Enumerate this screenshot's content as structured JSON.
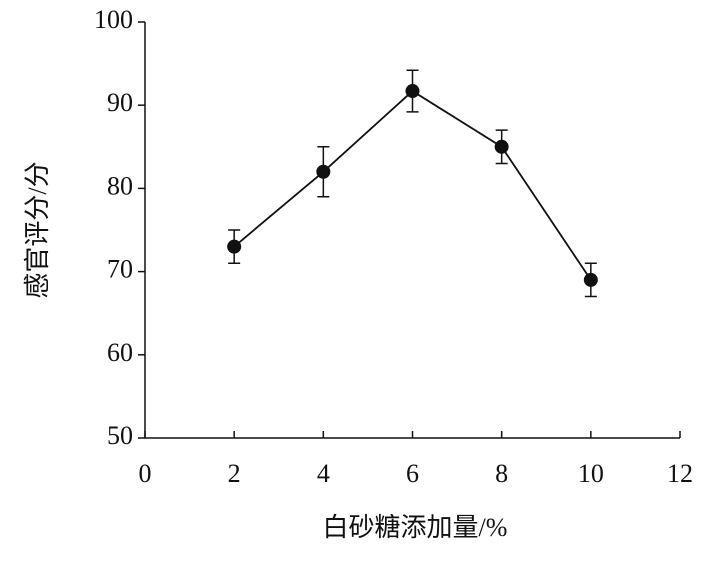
{
  "chart_data": {
    "type": "line",
    "x_label": "白砂糖添加量/%",
    "y_label": "感官评分/分",
    "x": [
      2,
      4,
      6,
      8,
      10
    ],
    "values": [
      73,
      82,
      91.7,
      85,
      69
    ],
    "errors": [
      2,
      3,
      2.5,
      2,
      2
    ],
    "color": "#111111",
    "xlim": [
      0,
      12
    ],
    "xticks": [
      0,
      2,
      4,
      6,
      8,
      10,
      12
    ],
    "ylim": [
      50,
      100
    ],
    "yticks": [
      50,
      60,
      70,
      80,
      90,
      100
    ],
    "grid": false
  }
}
